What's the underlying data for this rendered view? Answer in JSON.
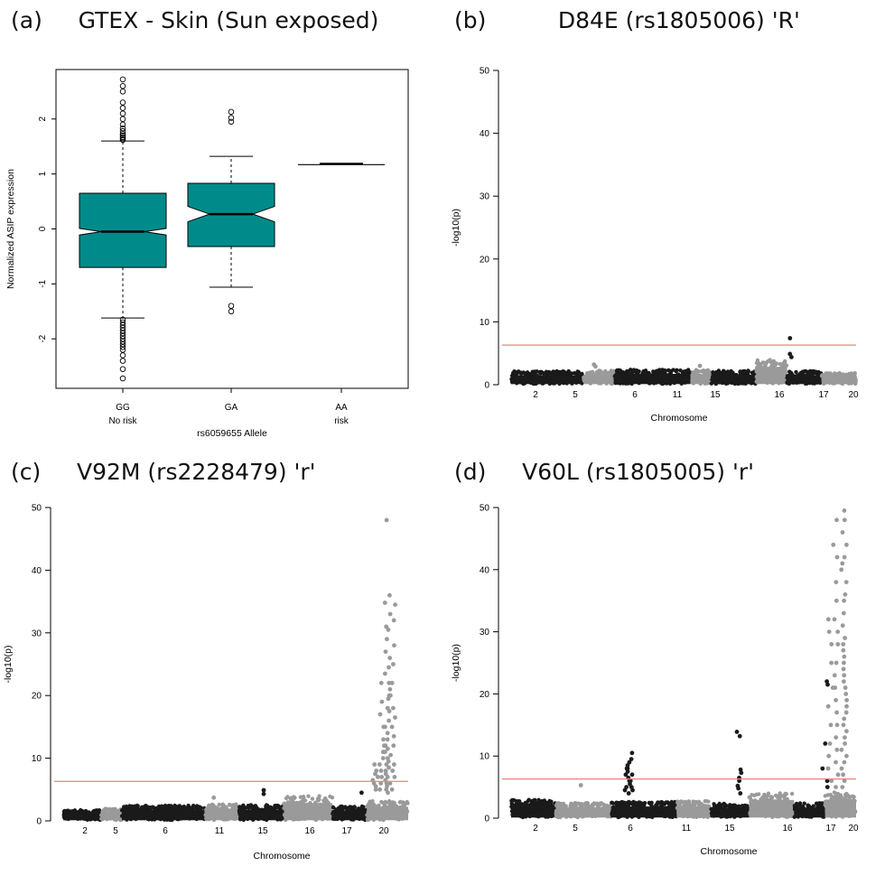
{
  "panels": [
    {
      "letter": "(a)",
      "title": "GTEX - Skin (Sun exposed)"
    },
    {
      "letter": "(b)",
      "title": "D84E (rs1805006) 'R'"
    },
    {
      "letter": "(c)",
      "title": "V92M (rs2228479) 'r'"
    },
    {
      "letter": "(d)",
      "title": "V60L (rs1805005) 'r'"
    }
  ],
  "colors": {
    "box_fill": "#008B8B",
    "threshold_line": "#F08080",
    "dark_points": "#1a1a1a",
    "light_points": "#9a9a9a"
  },
  "chart_data": [
    {
      "panel": "a",
      "type": "box",
      "title": "GTEX - Skin (Sun exposed)",
      "ylabel": "Normalized ASIP expression",
      "xlabel": "rs6059655 Allele",
      "ylim": [
        -2.9,
        2.9
      ],
      "yticks": [
        -2,
        -1,
        0,
        1,
        2
      ],
      "categories": [
        {
          "label": "GG",
          "sublabel": "No risk",
          "q1": -0.7,
          "median": -0.05,
          "q3": 0.65,
          "notch_lo": -0.11,
          "notch_hi": 0.01,
          "whisker_lo": -1.62,
          "whisker_hi": 1.6,
          "outliers": [
            1.62,
            1.65,
            1.67,
            1.7,
            1.73,
            1.78,
            1.83,
            1.9,
            2.0,
            2.1,
            2.2,
            2.3,
            2.5,
            2.6,
            2.72,
            -1.65,
            -1.7,
            -1.75,
            -1.8,
            -1.85,
            -1.9,
            -1.95,
            -2.0,
            -2.05,
            -2.1,
            -2.15,
            -2.2,
            -2.3,
            -2.4,
            -2.55,
            -2.72
          ]
        },
        {
          "label": "GA",
          "sublabel": "",
          "q1": -0.32,
          "median": 0.27,
          "q3": 0.83,
          "notch_lo": 0.13,
          "notch_hi": 0.41,
          "whisker_lo": -1.06,
          "whisker_hi": 1.32,
          "outliers": [
            1.95,
            2.02,
            2.13,
            -1.4,
            -1.5
          ]
        },
        {
          "label": "AA",
          "sublabel": "risk",
          "q1": 1.17,
          "median": 1.17,
          "q3": 1.17,
          "notch_lo": 1.17,
          "notch_hi": 1.17,
          "whisker_lo": 1.17,
          "whisker_hi": 1.17,
          "outliers": []
        }
      ]
    },
    {
      "panel": "b",
      "type": "manhattan",
      "title": "D84E (rs1805006) 'R'",
      "xlabel": "Chromosome",
      "ylabel": "-log10(p)",
      "ylim": [
        0,
        50
      ],
      "yticks": [
        0,
        10,
        20,
        30,
        40,
        50
      ],
      "threshold": 6.3,
      "chromosome_labels": [
        "2",
        "5",
        "6",
        "11",
        "15",
        "16",
        "17",
        "20"
      ],
      "chromosome_segments": [
        {
          "start": 0.0,
          "end": 0.21,
          "shade": "dark",
          "base": 2.0
        },
        {
          "start": 0.21,
          "end": 0.3,
          "shade": "light",
          "base": 2.1
        },
        {
          "start": 0.3,
          "end": 0.52,
          "shade": "dark",
          "base": 2.3
        },
        {
          "start": 0.52,
          "end": 0.58,
          "shade": "light",
          "base": 2.2
        },
        {
          "start": 0.58,
          "end": 0.71,
          "shade": "dark",
          "base": 2.1
        },
        {
          "start": 0.71,
          "end": 0.8,
          "shade": "light",
          "base": 3.8
        },
        {
          "start": 0.8,
          "end": 0.9,
          "shade": "dark",
          "base": 2.0
        },
        {
          "start": 0.9,
          "end": 1.0,
          "shade": "light",
          "base": 1.7
        }
      ],
      "peaks": [
        {
          "pos": 0.805,
          "values": [
            7.4,
            4.9,
            4.4
          ]
        },
        {
          "pos": 0.24,
          "values": [
            3.2,
            2.9
          ]
        },
        {
          "pos": 0.55,
          "values": [
            3.0
          ]
        }
      ]
    },
    {
      "panel": "c",
      "type": "manhattan",
      "title": "V92M (rs2228479) 'r'",
      "xlabel": "Chromosome",
      "ylabel": "-log10(p)",
      "ylim": [
        0,
        50
      ],
      "yticks": [
        0,
        10,
        20,
        30,
        40,
        50
      ],
      "threshold": 6.3,
      "chromosome_labels": [
        "2",
        "5",
        "6",
        "11",
        "15",
        "16",
        "17",
        "20"
      ],
      "chromosome_segments": [
        {
          "start": 0.0,
          "end": 0.11,
          "shade": "dark",
          "base": 1.6
        },
        {
          "start": 0.11,
          "end": 0.17,
          "shade": "light",
          "base": 1.8
        },
        {
          "start": 0.17,
          "end": 0.41,
          "shade": "dark",
          "base": 2.3
        },
        {
          "start": 0.41,
          "end": 0.51,
          "shade": "light",
          "base": 2.5
        },
        {
          "start": 0.51,
          "end": 0.64,
          "shade": "dark",
          "base": 2.4
        },
        {
          "start": 0.64,
          "end": 0.78,
          "shade": "light",
          "base": 3.8
        },
        {
          "start": 0.78,
          "end": 0.88,
          "shade": "dark",
          "base": 2.2
        },
        {
          "start": 0.88,
          "end": 1.0,
          "shade": "light",
          "base": 3.0
        }
      ],
      "peaks": [
        {
          "pos": 0.94,
          "values": [
            48,
            36,
            34.8,
            33,
            31,
            30.5,
            29,
            27,
            26,
            24.5,
            23.5,
            22,
            21,
            20,
            19.5,
            18,
            17.5,
            16,
            15,
            14,
            13,
            12,
            11.5,
            11,
            10,
            9.5,
            9,
            8.5,
            8,
            7.5,
            7,
            6.5,
            6,
            5.5,
            5,
            4.5
          ]
        },
        {
          "pos": 0.955,
          "values": [
            34.5,
            32,
            28,
            25,
            22,
            20,
            18,
            16.5,
            15,
            13.5,
            12,
            10.5,
            9,
            8,
            7,
            6,
            5
          ]
        },
        {
          "pos": 0.925,
          "values": [
            22,
            19,
            17,
            15,
            13,
            12,
            11,
            10,
            9,
            8,
            7,
            6,
            5
          ]
        },
        {
          "pos": 0.905,
          "values": [
            9,
            8,
            7.5,
            7,
            6.5,
            6,
            5.5,
            5
          ]
        },
        {
          "pos": 0.58,
          "values": [
            4.9,
            4.3
          ]
        },
        {
          "pos": 0.86,
          "values": [
            4.5
          ]
        },
        {
          "pos": 0.44,
          "values": [
            3.7
          ]
        }
      ]
    },
    {
      "panel": "d",
      "type": "manhattan",
      "title": "V60L (rs1805005) 'r'",
      "xlabel": "Chromosome",
      "ylabel": "-log10(p)",
      "ylim": [
        0,
        50
      ],
      "yticks": [
        0,
        10,
        20,
        30,
        40,
        50
      ],
      "threshold": 6.3,
      "chromosome_labels": [
        "2",
        "5",
        "6",
        "11",
        "15",
        "16",
        "17",
        "20"
      ],
      "chromosome_segments": [
        {
          "start": 0.0,
          "end": 0.13,
          "shade": "dark",
          "base": 2.8
        },
        {
          "start": 0.13,
          "end": 0.29,
          "shade": "light",
          "base": 2.3
        },
        {
          "start": 0.29,
          "end": 0.48,
          "shade": "dark",
          "base": 2.5
        },
        {
          "start": 0.48,
          "end": 0.58,
          "shade": "light",
          "base": 2.6
        },
        {
          "start": 0.58,
          "end": 0.69,
          "shade": "dark",
          "base": 2.2
        },
        {
          "start": 0.69,
          "end": 0.82,
          "shade": "light",
          "base": 3.9
        },
        {
          "start": 0.82,
          "end": 0.91,
          "shade": "dark",
          "base": 2.3
        },
        {
          "start": 0.91,
          "end": 1.0,
          "shade": "light",
          "base": 4.0
        }
      ],
      "peaks": [
        {
          "pos": 0.965,
          "values": [
            49.5,
            48,
            46,
            44,
            42,
            41,
            40,
            38,
            36,
            35,
            33,
            31,
            29,
            28,
            27,
            26,
            25,
            24,
            23,
            22,
            21,
            20,
            19,
            18,
            17,
            16,
            15,
            14,
            13,
            12,
            11,
            10,
            9,
            8,
            7,
            6,
            5
          ]
        },
        {
          "pos": 0.94,
          "values": [
            48,
            44,
            42,
            38,
            35,
            32,
            30,
            28,
            25,
            23,
            21,
            19,
            17,
            15,
            13,
            11,
            9,
            7,
            5
          ]
        },
        {
          "pos": 0.925,
          "values": [
            32,
            30,
            28,
            25,
            21,
            18,
            15,
            12,
            10,
            8,
            6
          ]
        },
        {
          "pos": 0.91,
          "values": [
            22,
            21.5,
            12,
            8,
            6,
            5
          ]
        },
        {
          "pos": 0.345,
          "values": [
            10.5,
            9.5,
            9,
            8.5,
            8,
            7.5,
            7,
            6.5,
            6,
            5.5,
            5,
            4.5,
            4
          ]
        },
        {
          "pos": 0.335,
          "values": [
            8,
            7,
            6,
            5,
            4.5
          ]
        },
        {
          "pos": 0.66,
          "values": [
            13.9,
            13.2,
            7.8,
            7.3,
            6.5,
            6,
            5.2,
            4.8,
            4
          ]
        },
        {
          "pos": 0.2,
          "values": [
            5.3
          ]
        }
      ]
    }
  ]
}
